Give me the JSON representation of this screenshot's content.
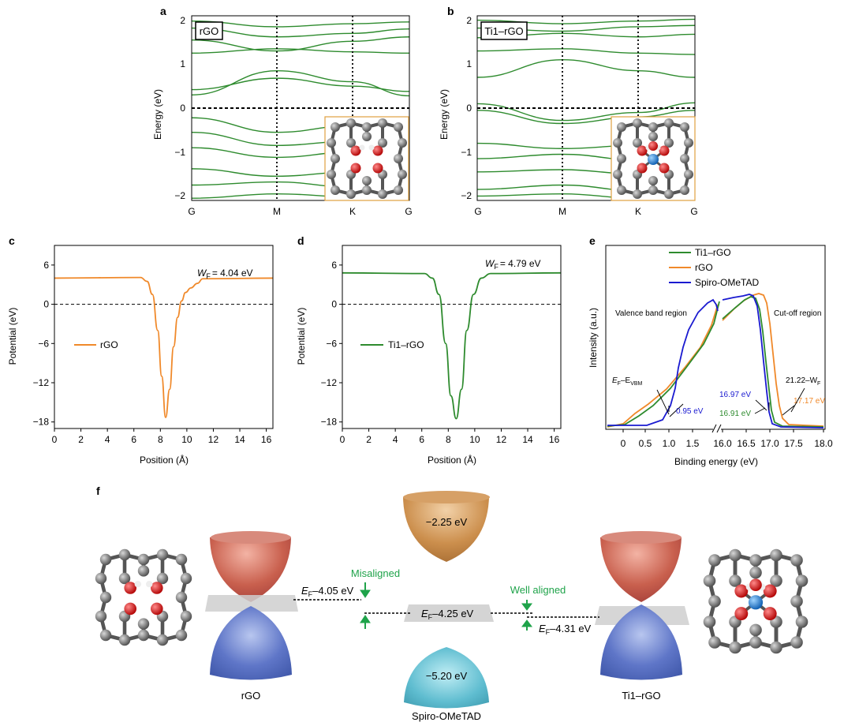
{
  "panels": {
    "a": {
      "letter": "a",
      "tag": "rGO"
    },
    "b": {
      "letter": "b",
      "tag": "Ti1–rGO"
    },
    "c": {
      "letter": "c"
    },
    "d": {
      "letter": "d"
    },
    "e": {
      "letter": "e"
    },
    "f": {
      "letter": "f"
    }
  },
  "band_structure": {
    "ylabel": "Energy (eV)",
    "yticks": [
      "2",
      "1",
      "0",
      "−1",
      "−2"
    ],
    "ylim": [
      -2.1,
      2.1
    ],
    "kpoints": [
      "G",
      "M",
      "K",
      "G"
    ],
    "band_color": "#2e8b2e"
  },
  "chart_data": [
    {
      "type": "line",
      "panel": "a",
      "ylabel": "Energy (eV)",
      "kpath": [
        "G",
        "M",
        "K",
        "G"
      ],
      "ylim": [
        -2.1,
        2.1
      ],
      "fermi_level": 0,
      "series_color": "#2e8b2e",
      "bands": [
        {
          "k": [
            0,
            1,
            2,
            3
          ],
          "E": [
            -0.22,
            -0.55,
            -0.4,
            -0.25
          ]
        },
        {
          "k": [
            0,
            1,
            2,
            3
          ],
          "E": [
            -0.55,
            -0.85,
            -0.75,
            -0.58
          ]
        },
        {
          "k": [
            0,
            1,
            2,
            3
          ],
          "E": [
            -0.9,
            -1.12,
            -1.0,
            -0.92
          ]
        },
        {
          "k": [
            0,
            1,
            2,
            3
          ],
          "E": [
            -1.38,
            -1.55,
            -1.45,
            -1.4
          ]
        },
        {
          "k": [
            0,
            1,
            2,
            3
          ],
          "E": [
            -1.75,
            -1.68,
            -1.8,
            -1.85
          ]
        },
        {
          "k": [
            0,
            1,
            2,
            3
          ],
          "E": [
            -2.05,
            -1.95,
            -2.02,
            -2.08
          ]
        },
        {
          "k": [
            0,
            1,
            2,
            3
          ],
          "E": [
            0.3,
            0.85,
            0.6,
            0.28
          ]
        },
        {
          "k": [
            0,
            1,
            2,
            3
          ],
          "E": [
            0.42,
            0.68,
            0.5,
            0.38
          ]
        },
        {
          "k": [
            0,
            1,
            2,
            3
          ],
          "E": [
            1.25,
            1.35,
            1.28,
            1.25
          ]
        },
        {
          "k": [
            0,
            1,
            2,
            3
          ],
          "E": [
            1.55,
            1.3,
            1.52,
            1.62
          ]
        },
        {
          "k": [
            0,
            1,
            2,
            3
          ],
          "E": [
            1.82,
            1.62,
            1.7,
            1.8
          ]
        },
        {
          "k": [
            0,
            1,
            2,
            3
          ],
          "E": [
            1.98,
            1.85,
            1.92,
            1.96
          ]
        }
      ]
    },
    {
      "type": "line",
      "panel": "b",
      "ylabel": "Energy (eV)",
      "kpath": [
        "G",
        "M",
        "K",
        "G"
      ],
      "ylim": [
        -2.1,
        2.1
      ],
      "fermi_level": 0,
      "series_color": "#2e8b2e",
      "bands": [
        {
          "k": [
            0,
            1,
            2,
            3
          ],
          "E": [
            0.1,
            -0.28,
            -0.1,
            0.12
          ]
        },
        {
          "k": [
            0,
            1,
            2,
            3
          ],
          "E": [
            -0.05,
            -0.35,
            -0.2,
            -0.05
          ]
        },
        {
          "k": [
            0,
            1,
            2,
            3
          ],
          "E": [
            -0.8,
            -0.92,
            -0.85,
            -0.78
          ]
        },
        {
          "k": [
            0,
            1,
            2,
            3
          ],
          "E": [
            -1.15,
            -1.05,
            -1.18,
            -1.2
          ]
        },
        {
          "k": [
            0,
            1,
            2,
            3
          ],
          "E": [
            -1.45,
            -1.4,
            -1.5,
            -1.48
          ]
        },
        {
          "k": [
            0,
            1,
            2,
            3
          ],
          "E": [
            -1.85,
            -1.75,
            -1.88,
            -1.9
          ]
        },
        {
          "k": [
            0,
            1,
            2,
            3
          ],
          "E": [
            -2.0,
            -1.95,
            -2.05,
            -2.05
          ]
        },
        {
          "k": [
            0,
            1,
            2,
            3
          ],
          "E": [
            0.7,
            1.1,
            0.85,
            0.7
          ]
        },
        {
          "k": [
            0,
            1,
            2,
            3
          ],
          "E": [
            1.3,
            1.35,
            1.25,
            1.22
          ]
        },
        {
          "k": [
            0,
            1,
            2,
            3
          ],
          "E": [
            1.6,
            1.7,
            1.62,
            1.68
          ]
        },
        {
          "k": [
            0,
            1,
            2,
            3
          ],
          "E": [
            1.82,
            1.75,
            1.85,
            1.88
          ]
        },
        {
          "k": [
            0,
            1,
            2,
            3
          ],
          "E": [
            2.0,
            1.92,
            1.98,
            2.02
          ]
        }
      ]
    },
    {
      "type": "line",
      "panel": "c",
      "xlabel": "Position (Å)",
      "ylabel": "Potential (eV)",
      "xlim": [
        0,
        16.5
      ],
      "ylim": [
        -19,
        9
      ],
      "xticks": [
        0,
        2,
        4,
        6,
        8,
        10,
        12,
        14,
        16
      ],
      "yticks": [
        6,
        0,
        -6,
        -12,
        -18
      ],
      "annotation": {
        "text": "= 4.04 eV",
        "symbol": "W",
        "sub": "F"
      },
      "series": [
        {
          "name": "rGO",
          "color": "#f0892a",
          "x": [
            0,
            6.5,
            7.0,
            7.4,
            7.8,
            8.1,
            8.4,
            8.7,
            9.0,
            9.3,
            9.6,
            9.9,
            10.3,
            10.8,
            11.2,
            16.5
          ],
          "y": [
            4.0,
            4.1,
            3.5,
            1.5,
            -4.0,
            -11.0,
            -17.3,
            -13.0,
            -6.5,
            -2.0,
            0.5,
            1.8,
            2.5,
            3.2,
            3.9,
            4.0
          ]
        }
      ]
    },
    {
      "type": "line",
      "panel": "d",
      "xlabel": "Position (Å)",
      "ylabel": "Potential (eV)",
      "xlim": [
        0,
        16.5
      ],
      "ylim": [
        -19,
        9
      ],
      "xticks": [
        0,
        2,
        4,
        6,
        8,
        10,
        12,
        14,
        16
      ],
      "yticks": [
        6,
        0,
        -6,
        -12,
        -18
      ],
      "annotation": {
        "text": "= 4.79 eV",
        "symbol": "W",
        "sub": "F"
      },
      "series": [
        {
          "name": "Ti1–rGO",
          "color": "#2e8b2e",
          "x": [
            0,
            6.2,
            6.8,
            7.3,
            7.8,
            8.2,
            8.6,
            9.0,
            9.4,
            9.9,
            10.5,
            11.2,
            16.5
          ],
          "y": [
            4.8,
            4.7,
            4.0,
            1.5,
            -6.0,
            -14.0,
            -17.5,
            -13.0,
            -4.0,
            1.5,
            4.0,
            4.7,
            4.8
          ]
        }
      ]
    },
    {
      "type": "line",
      "panel": "e",
      "xlabel": "Binding energy (eV)",
      "ylabel": "Intensity (a.u.)",
      "xticks": [
        "0",
        "0.5",
        "1.0",
        "1.5",
        "16.0",
        "16.5",
        "17.0",
        "17.5",
        "18.0"
      ],
      "regions": [
        "Valence band region",
        "Cut-off region"
      ],
      "labels": {
        "vbm": "E",
        "vbm_sub1": "F",
        "vbm_mid": "–E",
        "vbm_sub2": "VBM",
        "cutoff": "21.22–W",
        "cutoff_sub": "F",
        "v1": "0.95 eV",
        "v2": "16.97 eV",
        "v3": "16.91 eV",
        "v4": "17.17 eV"
      },
      "series": [
        {
          "name": "Ti1–rGO",
          "color": "#2e8b2e"
        },
        {
          "name": "rGO",
          "color": "#f0892a"
        },
        {
          "name": "Spiro-OMeTAD",
          "color": "#1a1ad0"
        }
      ]
    }
  ],
  "diagram_f": {
    "rgo_label": "rGO",
    "spiro_label": "Spiro-OMeTAD",
    "ti_label": "Ti1–rGO",
    "lumo": "−2.25 eV",
    "homo": "−5.20 eV",
    "ef_rgo": "E",
    "ef_rgo_sub": "F",
    "ef_rgo_val": "–4.05 eV",
    "ef_spiro_val": "–4.25 eV",
    "ef_ti_val": "–4.31 eV",
    "misaligned": "Misaligned",
    "well_aligned": "Well aligned",
    "accent": "#1fa34a"
  }
}
